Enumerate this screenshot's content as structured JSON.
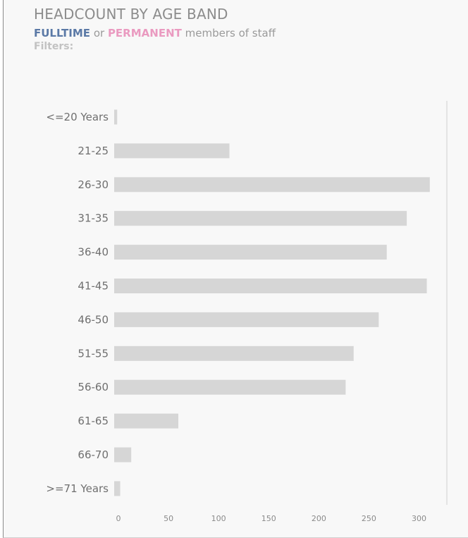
{
  "header": {
    "title": "HEADCOUNT BY AGE BAND",
    "fulltime": "FULLTIME",
    "connector": " or ",
    "permanent": "PERMANENT",
    "suffix": " members of staff",
    "filters_label": "Filters:"
  },
  "colors": {
    "bar": "#d6d6d6",
    "fulltime": "#5b79a6",
    "permanent": "#ea9ac0"
  },
  "chart_data": {
    "type": "bar",
    "orientation": "horizontal",
    "title": "HEADCOUNT BY AGE BAND",
    "categories": [
      "<=20 Years",
      "21-25",
      "26-30",
      "31-35",
      "36-40",
      "41-45",
      "46-50",
      "51-55",
      "56-60",
      "61-65",
      "66-70",
      ">=71 Years"
    ],
    "values": [
      3,
      115,
      315,
      292,
      272,
      312,
      264,
      239,
      231,
      64,
      17,
      6
    ],
    "xticks": [
      0,
      50,
      100,
      150,
      200,
      250,
      300
    ],
    "xlim": [
      0,
      332
    ],
    "grid": false,
    "legend": "none"
  }
}
